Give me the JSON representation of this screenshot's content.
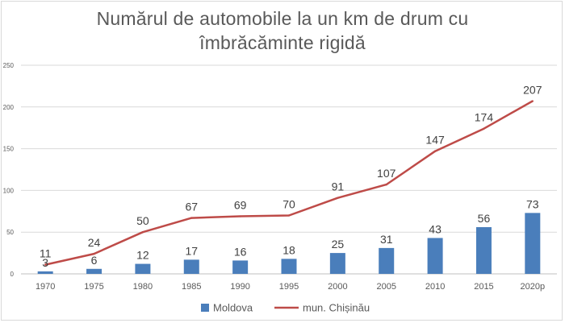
{
  "chart_data": {
    "type": "bar",
    "title_lines": [
      "Numărul de automobile la un km de drum cu",
      "îmbrăcăminte rigidă"
    ],
    "categories": [
      "1970",
      "1975",
      "1980",
      "1985",
      "1990",
      "1995",
      "2000",
      "2005",
      "2010",
      "2015",
      "2020p"
    ],
    "series": [
      {
        "name": "Moldova",
        "kind": "bar",
        "color": "#4a7ebb",
        "values": [
          3,
          6,
          12,
          17,
          16,
          18,
          25,
          31,
          43,
          56,
          73
        ]
      },
      {
        "name": "mun. Chișinău",
        "kind": "line",
        "color": "#be4b48",
        "values": [
          11,
          24,
          50,
          67,
          69,
          70,
          91,
          107,
          147,
          174,
          207
        ]
      }
    ],
    "ylim": [
      0,
      250
    ],
    "yticks": [
      0,
      50,
      100,
      150,
      200,
      250
    ],
    "xlabel": "",
    "ylabel": "",
    "grid": true,
    "legend_position": "bottom",
    "colors": {
      "gridline": "#d9d9d9",
      "axis": "#bfbfbf",
      "text": "#595959"
    }
  }
}
